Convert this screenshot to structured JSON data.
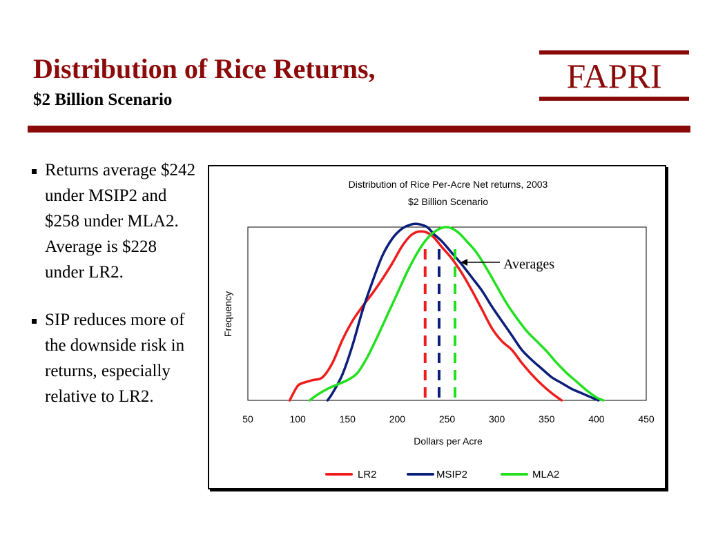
{
  "slide": {
    "title": "Distribution of Rice Returns,",
    "subtitle": "$2 Billion Scenario",
    "logo_text": "FAPRI",
    "accent_color": "#8B0A0A",
    "bullets": [
      "Returns average $242 under MSIP2 and $258 under MLA2. Average is $228 under LR2.",
      "SIP reduces more of the downside risk in returns, especially relative to LR2."
    ]
  },
  "chart_data": {
    "type": "line",
    "title": "Distribution of Rice Per-Acre Net returns, 2003",
    "subtitle": "$2 Billion Scenario",
    "xlabel": "Dollars per Acre",
    "ylabel": "Frequency",
    "xlim": [
      50,
      450
    ],
    "ylim": [
      0,
      1.2
    ],
    "xticks": [
      "50",
      "100",
      "150",
      "200",
      "250",
      "300",
      "350",
      "400",
      "450"
    ],
    "yticks_shown": false,
    "grid": false,
    "legend_position": "bottom",
    "annotation": {
      "text": "Averages",
      "points_to": 258
    },
    "series": [
      {
        "name": "LR2",
        "color": "#EE1C1C",
        "average": 228,
        "x": [
          92,
          95,
          100,
          105,
          115,
          125,
          135,
          145,
          155,
          165,
          175,
          185,
          195,
          205,
          215,
          225,
          235,
          245,
          255,
          265,
          275,
          285,
          295,
          305,
          315,
          325,
          335,
          345,
          355,
          365
        ],
        "y": [
          0,
          0.04,
          0.1,
          0.12,
          0.14,
          0.16,
          0.26,
          0.42,
          0.55,
          0.65,
          0.74,
          0.84,
          0.95,
          1.07,
          1.15,
          1.17,
          1.14,
          1.06,
          0.98,
          0.88,
          0.76,
          0.63,
          0.5,
          0.41,
          0.35,
          0.26,
          0.18,
          0.11,
          0.05,
          0
        ]
      },
      {
        "name": "MSIP2",
        "color": "#0A1E7A",
        "average": 242,
        "x": [
          130,
          135,
          145,
          155,
          165,
          175,
          185,
          195,
          205,
          215,
          222,
          230,
          237,
          245,
          255,
          265,
          275,
          285,
          295,
          305,
          315,
          325,
          335,
          345,
          355,
          365,
          375,
          385,
          395,
          402
        ],
        "y": [
          0,
          0.05,
          0.18,
          0.38,
          0.62,
          0.82,
          1.0,
          1.12,
          1.19,
          1.22,
          1.22,
          1.2,
          1.15,
          1.1,
          1.02,
          0.94,
          0.85,
          0.76,
          0.65,
          0.55,
          0.45,
          0.35,
          0.28,
          0.22,
          0.16,
          0.12,
          0.08,
          0.05,
          0.02,
          0
        ]
      },
      {
        "name": "MLA2",
        "color": "#22E01E",
        "average": 258,
        "x": [
          112,
          120,
          130,
          140,
          150,
          160,
          170,
          180,
          190,
          200,
          210,
          220,
          230,
          240,
          250,
          260,
          270,
          280,
          290,
          300,
          310,
          320,
          330,
          340,
          350,
          360,
          370,
          380,
          390,
          400,
          407
        ],
        "y": [
          0,
          0.04,
          0.08,
          0.11,
          0.14,
          0.19,
          0.3,
          0.44,
          0.59,
          0.74,
          0.89,
          1.02,
          1.12,
          1.18,
          1.2,
          1.17,
          1.1,
          1.02,
          0.91,
          0.79,
          0.67,
          0.57,
          0.48,
          0.41,
          0.34,
          0.26,
          0.19,
          0.13,
          0.07,
          0.02,
          0
        ]
      }
    ]
  }
}
